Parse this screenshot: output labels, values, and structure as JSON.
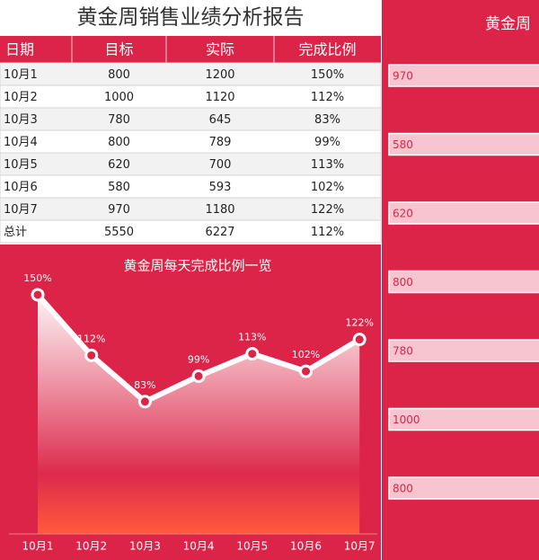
{
  "header": {
    "title": "黄金周销售业绩分析报告"
  },
  "table": {
    "columns": [
      "日期",
      "目标",
      "实际",
      "完成比例"
    ],
    "rows": [
      [
        "10月1",
        "800",
        "1200",
        "150%"
      ],
      [
        "10月2",
        "1000",
        "1120",
        "112%"
      ],
      [
        "10月3",
        "780",
        "645",
        "83%"
      ],
      [
        "10月4",
        "800",
        "789",
        "99%"
      ],
      [
        "10月5",
        "620",
        "700",
        "113%"
      ],
      [
        "10月6",
        "580",
        "593",
        "102%"
      ],
      [
        "10月7",
        "970",
        "1180",
        "122%"
      ],
      [
        "总计",
        "5550",
        "6227",
        "112%"
      ]
    ]
  },
  "chart_data": [
    {
      "type": "line",
      "title": "黄金周每天完成比例一览",
      "categories": [
        "10月1",
        "10月2",
        "10月3",
        "10月4",
        "10月5",
        "10月6",
        "10月7"
      ],
      "values": [
        150,
        112,
        83,
        99,
        113,
        102,
        122
      ],
      "value_labels": [
        "150%",
        "112%",
        "83%",
        "99%",
        "113%",
        "102%",
        "122%"
      ],
      "ylim": [
        0,
        170
      ],
      "color": "#ffffff"
    },
    {
      "type": "bar",
      "title": "黄金周",
      "values": [
        970,
        580,
        620,
        800,
        780,
        1000,
        800
      ],
      "xlim": [
        0,
        1000
      ],
      "color": "#f7c5cf"
    }
  ]
}
